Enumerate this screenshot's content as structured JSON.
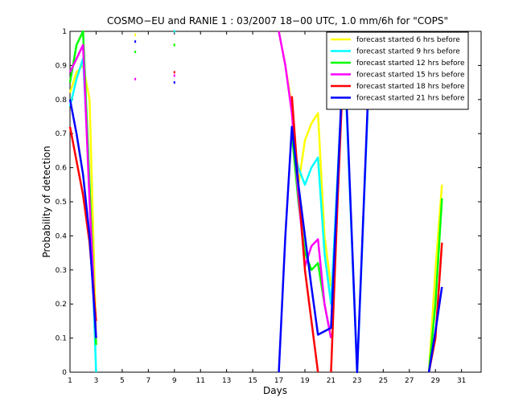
{
  "chart_data": {
    "type": "line",
    "title": "COSMO−EU and RANIE 1 : 03/2007 18−00 UTC, 1.0 mm/6h for \"COPS\"",
    "xlabel": "Days",
    "ylabel": "Probability of detection",
    "xlim": [
      1,
      32.5
    ],
    "ylim": [
      0,
      1
    ],
    "xticks": [
      1,
      3,
      5,
      7,
      9,
      11,
      13,
      15,
      17,
      19,
      21,
      23,
      25,
      27,
      29,
      31
    ],
    "yticks": [
      0,
      0.1,
      0.2,
      0.3,
      0.4,
      0.5,
      0.6,
      0.7,
      0.8,
      0.9,
      1
    ],
    "ytick_labels": [
      "0",
      "0.1",
      "0.2",
      "0.3",
      "0.4",
      "0.5",
      "0.6",
      "0.7",
      "0.8",
      "0.9",
      "1"
    ],
    "legend_position": "top-right",
    "series": [
      {
        "name": "forecast started 6 hrs before",
        "color": "#ffff00",
        "segments": [
          [
            [
              1,
              0.82
            ],
            [
              1.5,
              0.88
            ],
            [
              2,
              0.9
            ],
            [
              2.5,
              0.8
            ],
            [
              3,
              0.1
            ]
          ],
          [
            [
              17,
              1.0
            ],
            [
              17.5,
              0.9
            ],
            [
              18,
              0.78
            ],
            [
              18.5,
              0.55
            ],
            [
              19,
              0.68
            ],
            [
              19.5,
              0.73
            ],
            [
              20,
              0.76
            ],
            [
              20.5,
              0.4
            ],
            [
              21,
              0.25
            ]
          ],
          [
            [
              28.5,
              0.0
            ],
            [
              29,
              0.3
            ],
            [
              29.5,
              0.55
            ]
          ]
        ],
        "markers": [
          [
            6,
            0.99
          ],
          [
            9,
            0.96
          ]
        ]
      },
      {
        "name": "forecast started 9 hrs before",
        "color": "#00ffff",
        "segments": [
          [
            [
              1,
              0.78
            ],
            [
              1.5,
              0.86
            ],
            [
              2,
              0.92
            ],
            [
              2.5,
              0.55
            ],
            [
              3,
              0.0
            ]
          ],
          [
            [
              18,
              0.68
            ],
            [
              18.5,
              0.6
            ],
            [
              19,
              0.55
            ],
            [
              19.5,
              0.6
            ],
            [
              20,
              0.63
            ],
            [
              20.5,
              0.35
            ],
            [
              21,
              0.2
            ],
            [
              22,
              0.95
            ],
            [
              23,
              0.0
            ],
            [
              24,
              0.95
            ]
          ]
        ],
        "markers": [
          [
            9,
            1.0
          ]
        ]
      },
      {
        "name": "forecast started 12 hrs before",
        "color": "#00ff00",
        "segments": [
          [
            [
              1,
              0.85
            ],
            [
              1.5,
              0.96
            ],
            [
              2,
              1.0
            ],
            [
              2.5,
              0.55
            ],
            [
              3,
              0.08
            ]
          ],
          [
            [
              18,
              0.7
            ],
            [
              18.5,
              0.5
            ],
            [
              19,
              0.35
            ],
            [
              19.5,
              0.3
            ],
            [
              20,
              0.32
            ],
            [
              20.5,
              0.2
            ],
            [
              21,
              0.1
            ]
          ],
          [
            [
              28.5,
              0.0
            ],
            [
              29,
              0.2
            ],
            [
              29.5,
              0.51
            ]
          ]
        ],
        "markers": [
          [
            6,
            0.94
          ],
          [
            9,
            0.96
          ]
        ]
      },
      {
        "name": "forecast started 15 hrs before",
        "color": "#ff00ff",
        "segments": [
          [
            [
              1,
              0.88
            ],
            [
              1.5,
              0.92
            ],
            [
              2,
              0.96
            ],
            [
              2.5,
              0.5
            ],
            [
              3,
              0.1
            ]
          ],
          [
            [
              17,
              1.0
            ],
            [
              17.5,
              0.9
            ],
            [
              18,
              0.76
            ],
            [
              18.5,
              0.52
            ],
            [
              19,
              0.31
            ],
            [
              19.5,
              0.37
            ],
            [
              20,
              0.39
            ],
            [
              20.5,
              0.2
            ],
            [
              21,
              0.1
            ]
          ]
        ],
        "markers": [
          [
            6,
            0.86
          ],
          [
            9,
            0.87
          ]
        ]
      },
      {
        "name": "forecast started 18 hrs before",
        "color": "#ff0000",
        "segments": [
          [
            [
              1,
              0.72
            ],
            [
              1.5,
              0.62
            ],
            [
              2,
              0.52
            ],
            [
              2.5,
              0.38
            ],
            [
              3,
              0.15
            ]
          ],
          [
            [
              18,
              0.81
            ],
            [
              18.5,
              0.55
            ],
            [
              19,
              0.3
            ],
            [
              19.5,
              0.15
            ],
            [
              20,
              0.0
            ]
          ],
          [
            [
              21,
              0.0
            ],
            [
              21.5,
              0.5
            ],
            [
              22,
              0.95
            ]
          ],
          [
            [
              28.5,
              0.0
            ],
            [
              29,
              0.1
            ],
            [
              29.5,
              0.38
            ]
          ]
        ],
        "markers": [
          [
            9,
            0.88
          ]
        ]
      },
      {
        "name": "forecast started 21 hrs before",
        "color": "#0000ff",
        "segments": [
          [
            [
              1,
              0.8
            ],
            [
              1.5,
              0.7
            ],
            [
              2,
              0.58
            ],
            [
              2.5,
              0.4
            ],
            [
              3,
              0.1
            ]
          ],
          [
            [
              17,
              0.0
            ],
            [
              17.5,
              0.4
            ],
            [
              18,
              0.72
            ],
            [
              18.5,
              0.55
            ],
            [
              19,
              0.4
            ],
            [
              19.5,
              0.25
            ],
            [
              20,
              0.11
            ],
            [
              21,
              0.13
            ],
            [
              22,
              0.98
            ],
            [
              23,
              0.0
            ],
            [
              24,
              0.97
            ]
          ],
          [
            [
              28.5,
              0.0
            ],
            [
              29,
              0.12
            ],
            [
              29.5,
              0.25
            ]
          ]
        ],
        "markers": [
          [
            6,
            0.97
          ],
          [
            9,
            0.85
          ]
        ]
      }
    ]
  }
}
